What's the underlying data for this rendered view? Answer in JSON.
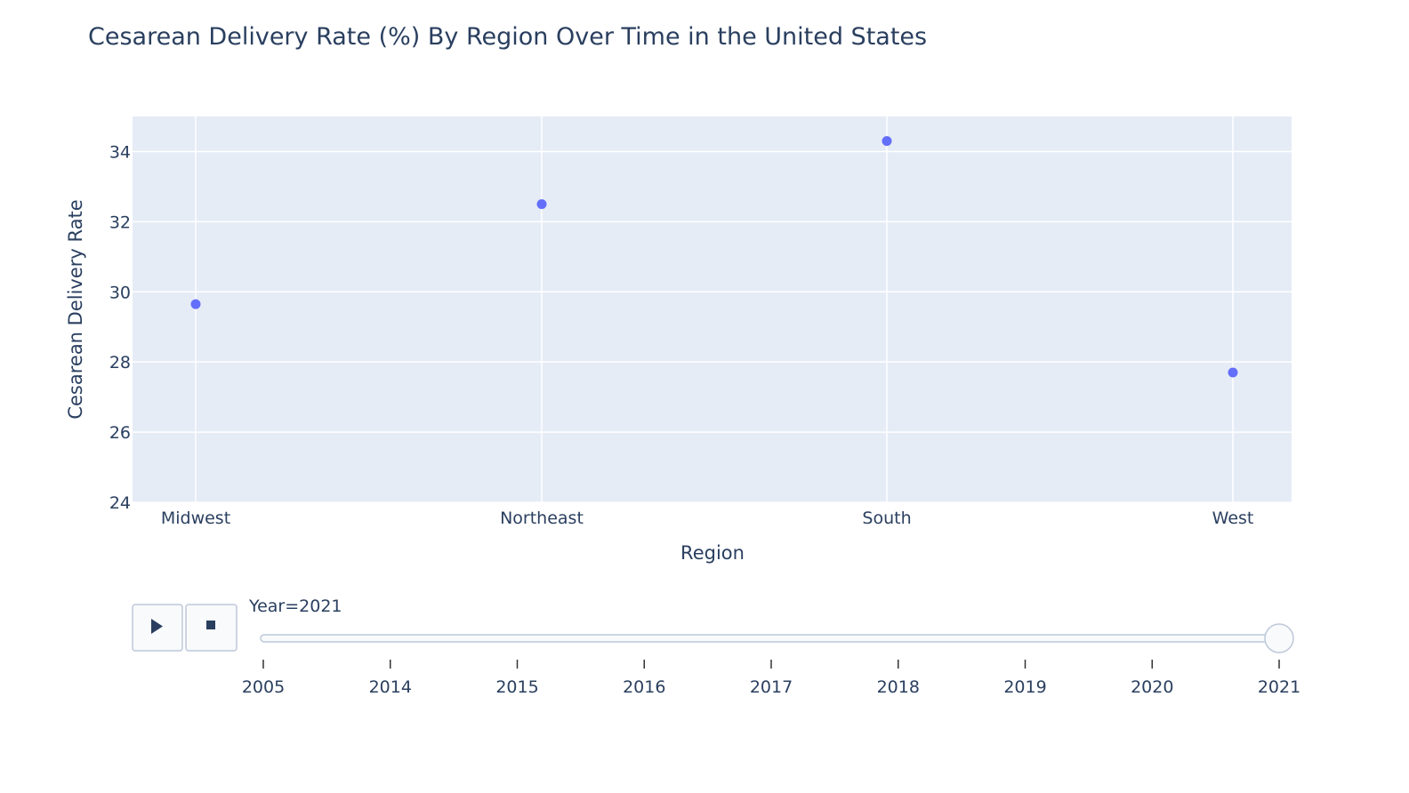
{
  "chart_data": {
    "type": "scatter",
    "title": "Cesarean Delivery Rate (%) By Region Over Time in the United States",
    "xlabel": "Region",
    "ylabel": "Cesarean Delivery Rate",
    "categories": [
      "Midwest",
      "Northeast",
      "South",
      "West"
    ],
    "series": [
      {
        "values": [
          29.65,
          32.5,
          34.3,
          27.7
        ]
      }
    ],
    "ylim": [
      24,
      35
    ],
    "yticks": [
      24,
      26,
      28,
      30,
      32,
      34
    ],
    "grid": true,
    "colors": {
      "marker": "#636efa",
      "plot_bg": "#e5ecf6",
      "grid": "#ffffff",
      "text": "#2a3f5f"
    }
  },
  "animation": {
    "slider_prefix": "Year=",
    "current_value": "2021",
    "steps": [
      "2005",
      "2014",
      "2015",
      "2016",
      "2017",
      "2018",
      "2019",
      "2020",
      "2021"
    ],
    "play_icon": "play-icon",
    "stop_icon": "stop-icon"
  }
}
